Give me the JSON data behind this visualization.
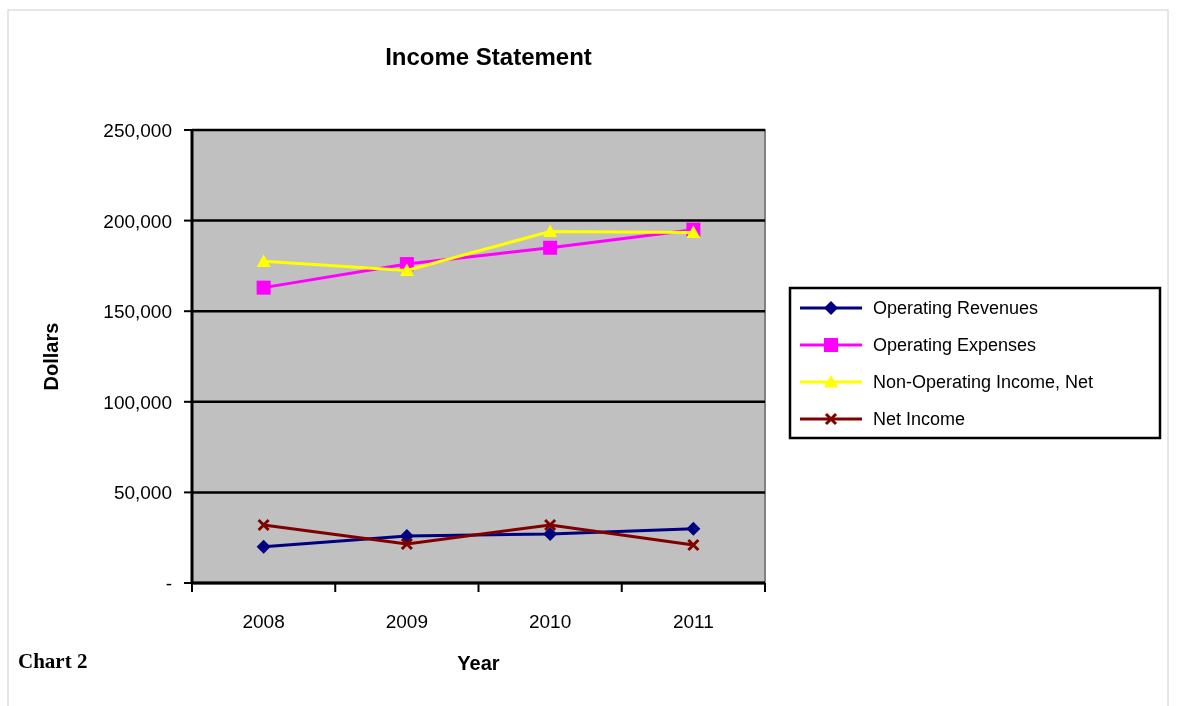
{
  "chart_data": {
    "type": "line",
    "title": "Income Statement",
    "xlabel": "Year",
    "ylabel": "Dollars",
    "categories": [
      "2008",
      "2009",
      "2010",
      "2011"
    ],
    "series": [
      {
        "name": "Operating Revenues",
        "color": "#000080",
        "marker": "diamond",
        "values": [
          20000,
          26000,
          27000,
          30000
        ]
      },
      {
        "name": "Operating Expenses",
        "color": "#ff00ff",
        "marker": "square",
        "values": [
          163000,
          176000,
          185000,
          195000
        ]
      },
      {
        "name": "Non-Operating Income, Net",
        "color": "#ffff00",
        "marker": "triangle",
        "values": [
          177500,
          172500,
          194000,
          193500
        ]
      },
      {
        "name": "Net Income",
        "color": "#800000",
        "marker": "cross",
        "values": [
          32000,
          21500,
          32000,
          21000
        ]
      }
    ],
    "ylim": [
      0,
      250000
    ],
    "yticks": [
      {
        "value": 0,
        "label": "-"
      },
      {
        "value": 50000,
        "label": "50,000"
      },
      {
        "value": 100000,
        "label": "100,000"
      },
      {
        "value": 150000,
        "label": "150,000"
      },
      {
        "value": 200000,
        "label": "200,000"
      },
      {
        "value": 250000,
        "label": "250,000"
      }
    ],
    "grid": "y",
    "legend": "right",
    "line_style": "solid",
    "annotations": [
      "Chart 2"
    ]
  }
}
